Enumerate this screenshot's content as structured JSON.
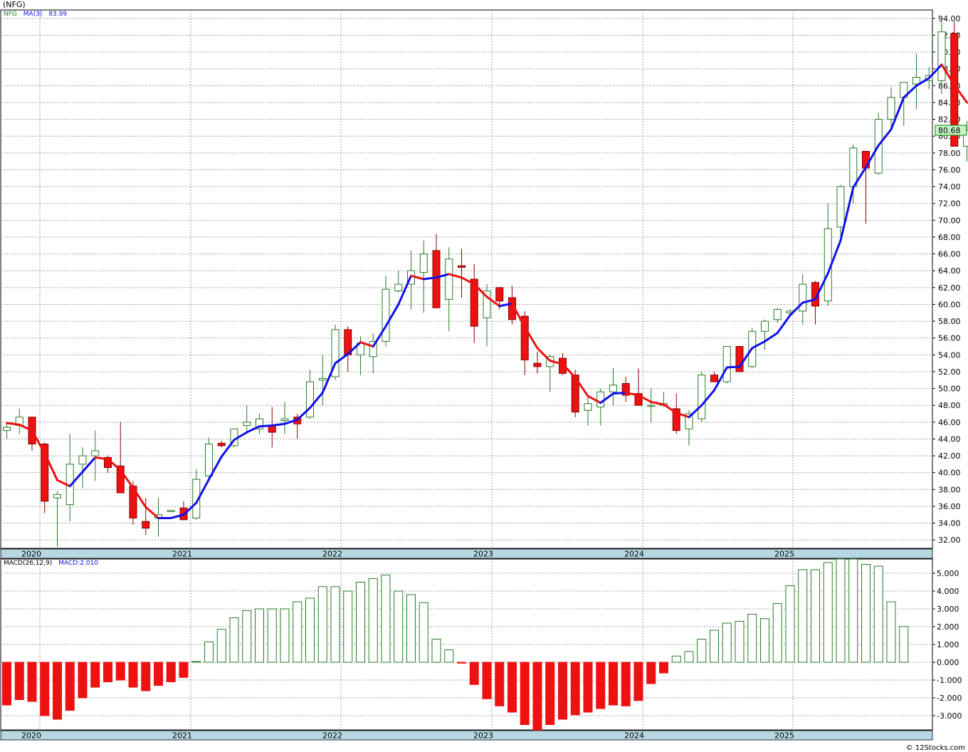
{
  "title": "(NFG)",
  "credit": "© 12Stocks.com",
  "colors": {
    "up": "#2a7a2a",
    "down": "#ee1111",
    "ma_up": "#1111ee",
    "ma_down": "#ee1111",
    "grid": "#a0a0a0",
    "axis_band": "#b7d8e3",
    "price_tag": "#c6f5c6"
  },
  "legend": {
    "symbol": "NFG",
    "ma_label": "MA(3)",
    "ma_value": "83.99",
    "macd_label": "MACD(26,12,9)",
    "macd_value": "MACD:2.010"
  },
  "price_tag": "80.68",
  "chart_data": [
    {
      "type": "candlestick",
      "x_labels": [
        "2020",
        "2021",
        "2022",
        "2023",
        "2024",
        "2025"
      ],
      "ylim": [
        31,
        95
      ],
      "yticks": [
        "32.00",
        "34.00",
        "36.00",
        "38.00",
        "40.00",
        "42.00",
        "44.00",
        "46.00",
        "48.00",
        "50.00",
        "52.00",
        "54.00",
        "56.00",
        "58.00",
        "60.00",
        "62.00",
        "64.00",
        "66.00",
        "68.00",
        "70.00",
        "72.00",
        "74.00",
        "76.00",
        "78.00",
        "80.00",
        "82.00",
        "84.00",
        "86.00",
        "88.00",
        "90.00",
        "92.00",
        "94.00"
      ],
      "ohlc": [
        [
          45.0,
          46.0,
          44.0,
          45.4
        ],
        [
          45.6,
          47.6,
          44.6,
          46.6
        ],
        [
          46.6,
          46.6,
          42.6,
          43.4
        ],
        [
          43.4,
          43.6,
          35.2,
          36.6
        ],
        [
          37.0,
          37.8,
          31.2,
          37.4
        ],
        [
          36.2,
          44.6,
          34.2,
          41.0
        ],
        [
          41.0,
          43.0,
          38.2,
          42.0
        ],
        [
          42.0,
          45.0,
          39.0,
          42.6
        ],
        [
          41.8,
          42.0,
          40.0,
          40.6
        ],
        [
          40.8,
          46.0,
          38.0,
          37.6
        ],
        [
          38.4,
          39.0,
          33.8,
          34.6
        ],
        [
          34.2,
          37.0,
          32.6,
          33.4
        ],
        [
          34.6,
          37.0,
          32.4,
          35.0
        ],
        [
          35.4,
          35.5,
          35.3,
          35.5
        ],
        [
          35.8,
          36.6,
          34.4,
          34.4
        ],
        [
          34.6,
          40.4,
          34.4,
          39.2
        ],
        [
          39.6,
          44.2,
          39.0,
          43.4
        ],
        [
          43.5,
          43.8,
          43.0,
          43.2
        ],
        [
          43.2,
          45.0,
          43.0,
          45.2
        ],
        [
          45.6,
          48.0,
          44.6,
          46.0
        ],
        [
          45.2,
          47.0,
          44.6,
          46.4
        ],
        [
          45.6,
          47.8,
          43.0,
          44.8
        ],
        [
          46.2,
          48.4,
          44.6,
          46.4
        ],
        [
          46.6,
          47.0,
          44.0,
          45.8
        ],
        [
          46.6,
          52.2,
          46.4,
          50.8
        ],
        [
          51.0,
          54.0,
          48.0,
          51.2
        ],
        [
          51.4,
          57.6,
          51.0,
          57.0
        ],
        [
          57.0,
          57.4,
          52.0,
          54.0
        ],
        [
          54.0,
          56.2,
          51.6,
          55.4
        ],
        [
          53.8,
          56.6,
          51.8,
          55.6
        ],
        [
          55.6,
          63.4,
          55.0,
          61.8
        ],
        [
          61.6,
          64.0,
          61.4,
          62.4
        ],
        [
          62.4,
          66.4,
          59.4,
          64.0
        ],
        [
          63.8,
          67.6,
          59.0,
          66.0
        ],
        [
          66.4,
          68.4,
          59.6,
          59.6
        ],
        [
          60.6,
          66.8,
          56.8,
          65.4
        ],
        [
          64.6,
          66.6,
          60.8,
          64.4
        ],
        [
          63.0,
          64.8,
          55.4,
          57.4
        ],
        [
          58.4,
          62.4,
          55.0,
          61.6
        ],
        [
          62.0,
          62.0,
          59.4,
          60.4
        ],
        [
          60.8,
          62.2,
          57.6,
          58.2
        ],
        [
          58.6,
          59.2,
          51.6,
          53.4
        ],
        [
          53.0,
          54.4,
          51.8,
          52.6
        ],
        [
          52.6,
          54.0,
          49.6,
          53.8
        ],
        [
          53.6,
          54.2,
          51.6,
          51.8
        ],
        [
          51.6,
          52.2,
          46.6,
          47.2
        ],
        [
          47.4,
          49.2,
          45.6,
          48.2
        ],
        [
          47.8,
          50.0,
          45.6,
          49.6
        ],
        [
          49.6,
          52.4,
          48.0,
          50.4
        ],
        [
          50.6,
          51.4,
          48.4,
          49.2
        ],
        [
          49.4,
          52.4,
          48.0,
          48.0
        ],
        [
          48.0,
          50.0,
          46.0,
          48.0
        ],
        [
          48.0,
          49.6,
          47.8,
          48.2
        ],
        [
          47.6,
          49.4,
          44.6,
          45.0
        ],
        [
          45.2,
          47.4,
          43.2,
          47.0
        ],
        [
          46.4,
          52.0,
          46.0,
          51.6
        ],
        [
          51.6,
          52.0,
          51.0,
          50.8
        ],
        [
          50.8,
          55.0,
          50.6,
          55.0
        ],
        [
          55.0,
          55.0,
          52.0,
          52.0
        ],
        [
          52.6,
          57.2,
          52.4,
          56.8
        ],
        [
          56.8,
          58.2,
          54.6,
          58.0
        ],
        [
          58.2,
          59.6,
          57.8,
          59.4
        ],
        [
          59.0,
          59.4,
          58.8,
          59.2
        ],
        [
          59.2,
          63.6,
          57.6,
          62.4
        ],
        [
          62.6,
          62.8,
          57.6,
          59.8
        ],
        [
          60.4,
          72.0,
          59.8,
          69.0
        ],
        [
          69.2,
          74.2,
          67.6,
          74.0
        ],
        [
          74.0,
          79.0,
          72.0,
          78.6
        ],
        [
          78.2,
          78.2,
          69.6,
          76.2
        ],
        [
          75.6,
          82.8,
          75.4,
          82.0
        ],
        [
          82.0,
          85.8,
          81.0,
          84.6
        ],
        [
          84.6,
          86.0,
          81.2,
          86.4
        ],
        [
          86.2,
          89.8,
          83.2,
          87.0
        ],
        [
          86.6,
          88.2,
          85.6,
          87.2
        ],
        [
          86.6,
          94.0,
          85.0,
          92.4
        ],
        [
          92.2,
          93.6,
          79.0,
          78.8
        ],
        [
          78.8,
          81.8,
          77.0,
          80.7
        ]
      ],
      "ma_3": [
        45.9,
        45.7,
        45.0,
        42.3,
        39.1,
        38.4,
        40.1,
        41.8,
        41.6,
        40.3,
        38.2,
        35.9,
        34.6,
        34.6,
        35.0,
        36.4,
        39.2,
        41.9,
        43.9,
        44.8,
        45.5,
        45.6,
        45.8,
        46.3,
        47.7,
        49.5,
        53.0,
        54.1,
        55.5,
        55.0,
        57.4,
        60.0,
        63.4,
        63.0,
        63.2,
        63.6,
        63.2,
        62.4,
        60.9,
        59.8,
        60.1,
        57.3,
        54.8,
        53.3,
        52.9,
        51.3,
        49.1,
        48.3,
        49.4,
        49.5,
        49.2,
        48.4,
        48.1,
        47.1,
        46.6,
        48.0,
        49.8,
        52.5,
        52.6,
        54.8,
        55.6,
        56.6,
        58.7,
        60.2,
        60.6,
        63.7,
        67.6,
        73.9,
        76.3,
        78.9,
        80.8,
        84.6,
        86.0,
        86.9,
        88.5,
        86.1,
        83.99
      ]
    },
    {
      "type": "bar",
      "title": "MACD(26,12,9)",
      "ylim": [
        -3.8,
        5.8
      ],
      "yticks": [
        "-3.000",
        "-2.000",
        "-1.000",
        "0.000",
        "1.000",
        "2.000",
        "3.000",
        "4.000",
        "5.000"
      ],
      "values": [
        -2.4,
        -2.1,
        -2.2,
        -3.0,
        -3.2,
        -2.7,
        -2.0,
        -1.4,
        -1.1,
        -1.0,
        -1.4,
        -1.6,
        -1.3,
        -1.1,
        -0.85,
        0.05,
        1.15,
        1.85,
        2.5,
        2.9,
        3.0,
        3.0,
        3.0,
        3.4,
        3.6,
        4.25,
        4.25,
        4.0,
        4.5,
        4.7,
        4.9,
        4.0,
        3.8,
        3.35,
        1.3,
        0.7,
        -0.05,
        -1.25,
        -2.05,
        -2.45,
        -2.8,
        -3.5,
        -3.8,
        -3.5,
        -3.2,
        -2.95,
        -2.8,
        -2.6,
        -2.4,
        -2.45,
        -2.15,
        -1.2,
        -0.6,
        0.35,
        0.6,
        1.3,
        1.8,
        2.2,
        2.3,
        2.7,
        2.45,
        3.3,
        4.3,
        5.2,
        5.2,
        5.6,
        5.8,
        5.8,
        5.5,
        5.4,
        3.4,
        2.01
      ]
    }
  ]
}
